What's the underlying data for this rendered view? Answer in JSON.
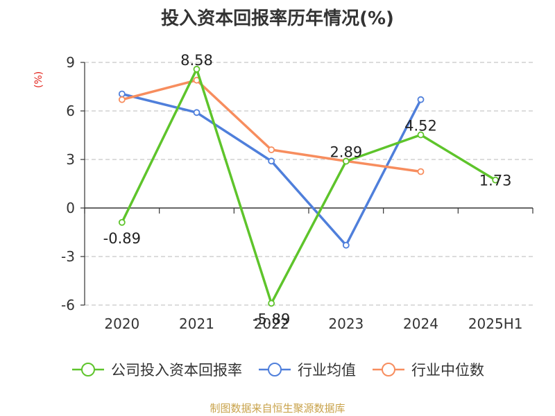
{
  "chart_data": {
    "type": "line",
    "title": "投入资本回报率历年情况(%)",
    "unit_label": "(%)",
    "categories": [
      "2020",
      "2021",
      "2022",
      "2023",
      "2024",
      "2025H1"
    ],
    "ylim": [
      -6,
      9
    ],
    "yticks": [
      -6,
      -3,
      0,
      3,
      6,
      9
    ],
    "grid": true,
    "legend_position": "bottom",
    "series": [
      {
        "name": "公司投入资本回报率",
        "color": "#5ec42b",
        "values": [
          -0.89,
          8.58,
          -5.89,
          2.89,
          4.52,
          1.73
        ],
        "data_labels": [
          "-0.89",
          "8.58",
          "-5.89",
          "2.89",
          "4.52",
          "1.73"
        ]
      },
      {
        "name": "行业均值",
        "color": "#4f7fdb",
        "values": [
          7.05,
          5.9,
          2.9,
          -2.3,
          6.7,
          null
        ]
      },
      {
        "name": "行业中位数",
        "color": "#f78d5e",
        "values": [
          6.7,
          7.9,
          3.6,
          2.9,
          2.25,
          null
        ]
      }
    ]
  },
  "source": "制图数据来自恒生聚源数据库"
}
